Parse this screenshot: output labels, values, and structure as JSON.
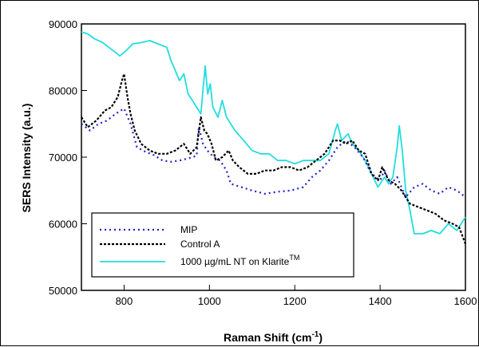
{
  "chart_data": {
    "type": "line",
    "xlabel": "Raman Shift (cm",
    "xlabel_sup": "-1",
    "xlabel_close": ")",
    "ylabel": "SERS Intensity (a.u.)",
    "xlim": [
      700,
      1600
    ],
    "ylim": [
      50000,
      90000
    ],
    "x_ticks": [
      800,
      1000,
      1200,
      1400,
      1600
    ],
    "y_ticks": [
      50000,
      60000,
      70000,
      80000,
      90000
    ],
    "legend_position": "bottom-left",
    "series": [
      {
        "name": "MIP",
        "color": "#2222cc",
        "dash": "dotted",
        "points": [
          [
            700,
            75000
          ],
          [
            720,
            74000
          ],
          [
            740,
            75000
          ],
          [
            760,
            75500
          ],
          [
            780,
            76500
          ],
          [
            800,
            77300
          ],
          [
            815,
            75000
          ],
          [
            830,
            71500
          ],
          [
            850,
            70800
          ],
          [
            870,
            70300
          ],
          [
            890,
            69500
          ],
          [
            910,
            69300
          ],
          [
            930,
            69500
          ],
          [
            950,
            69800
          ],
          [
            970,
            70200
          ],
          [
            975,
            74500
          ],
          [
            985,
            72000
          ],
          [
            995,
            71000
          ],
          [
            1010,
            70000
          ],
          [
            1025,
            69500
          ],
          [
            1040,
            68000
          ],
          [
            1050,
            66000
          ],
          [
            1075,
            65500
          ],
          [
            1100,
            65000
          ],
          [
            1130,
            64500
          ],
          [
            1160,
            64800
          ],
          [
            1190,
            65000
          ],
          [
            1220,
            65500
          ],
          [
            1240,
            67000
          ],
          [
            1260,
            68000
          ],
          [
            1280,
            69500
          ],
          [
            1300,
            71500
          ],
          [
            1320,
            72500
          ],
          [
            1340,
            71500
          ],
          [
            1360,
            70000
          ],
          [
            1380,
            67500
          ],
          [
            1400,
            66500
          ],
          [
            1410,
            68000
          ],
          [
            1425,
            66000
          ],
          [
            1440,
            67000
          ],
          [
            1460,
            64000
          ],
          [
            1480,
            65500
          ],
          [
            1500,
            66000
          ],
          [
            1520,
            65000
          ],
          [
            1540,
            64500
          ],
          [
            1560,
            65500
          ],
          [
            1580,
            65000
          ],
          [
            1600,
            64000
          ]
        ]
      },
      {
        "name": "Control A",
        "color": "#000000",
        "dash": "dashed",
        "points": [
          [
            700,
            76000
          ],
          [
            715,
            74500
          ],
          [
            735,
            75500
          ],
          [
            755,
            77000
          ],
          [
            770,
            77500
          ],
          [
            785,
            79000
          ],
          [
            795,
            81500
          ],
          [
            800,
            82500
          ],
          [
            808,
            79000
          ],
          [
            815,
            76500
          ],
          [
            825,
            74000
          ],
          [
            840,
            72000
          ],
          [
            860,
            71000
          ],
          [
            880,
            70500
          ],
          [
            900,
            70500
          ],
          [
            920,
            71000
          ],
          [
            940,
            72000
          ],
          [
            955,
            70500
          ],
          [
            970,
            71500
          ],
          [
            980,
            76000
          ],
          [
            988,
            74000
          ],
          [
            995,
            73500
          ],
          [
            1005,
            72000
          ],
          [
            1015,
            69500
          ],
          [
            1030,
            70000
          ],
          [
            1045,
            71000
          ],
          [
            1055,
            69500
          ],
          [
            1070,
            68500
          ],
          [
            1090,
            67500
          ],
          [
            1110,
            67500
          ],
          [
            1130,
            68000
          ],
          [
            1150,
            68000
          ],
          [
            1170,
            68500
          ],
          [
            1190,
            68500
          ],
          [
            1210,
            68000
          ],
          [
            1230,
            68500
          ],
          [
            1250,
            69500
          ],
          [
            1270,
            70500
          ],
          [
            1290,
            72500
          ],
          [
            1305,
            72500
          ],
          [
            1320,
            72000
          ],
          [
            1335,
            72500
          ],
          [
            1350,
            71000
          ],
          [
            1365,
            70500
          ],
          [
            1380,
            67500
          ],
          [
            1395,
            66500
          ],
          [
            1405,
            68500
          ],
          [
            1420,
            66500
          ],
          [
            1435,
            66000
          ],
          [
            1450,
            65000
          ],
          [
            1470,
            63000
          ],
          [
            1490,
            62500
          ],
          [
            1510,
            62000
          ],
          [
            1530,
            61500
          ],
          [
            1550,
            60500
          ],
          [
            1570,
            60000
          ],
          [
            1585,
            59500
          ],
          [
            1600,
            57000
          ]
        ]
      },
      {
        "name": "1000 µg/mL NT on Klarite",
        "name_sup": "TM",
        "color": "#22dddd",
        "dash": "solid",
        "points": [
          [
            700,
            88800
          ],
          [
            715,
            88500
          ],
          [
            730,
            87800
          ],
          [
            750,
            87200
          ],
          [
            770,
            86200
          ],
          [
            790,
            85200
          ],
          [
            805,
            86000
          ],
          [
            820,
            87000
          ],
          [
            840,
            87200
          ],
          [
            860,
            87500
          ],
          [
            880,
            87000
          ],
          [
            900,
            86500
          ],
          [
            910,
            84500
          ],
          [
            930,
            81500
          ],
          [
            940,
            82500
          ],
          [
            950,
            79500
          ],
          [
            960,
            78500
          ],
          [
            970,
            77500
          ],
          [
            980,
            76500
          ],
          [
            990,
            83700
          ],
          [
            996,
            79500
          ],
          [
            1002,
            81000
          ],
          [
            1008,
            77500
          ],
          [
            1020,
            76000
          ],
          [
            1030,
            78500
          ],
          [
            1040,
            76000
          ],
          [
            1060,
            74000
          ],
          [
            1080,
            72500
          ],
          [
            1100,
            71000
          ],
          [
            1120,
            70500
          ],
          [
            1140,
            70500
          ],
          [
            1160,
            69500
          ],
          [
            1180,
            69500
          ],
          [
            1200,
            69000
          ],
          [
            1220,
            69500
          ],
          [
            1240,
            69500
          ],
          [
            1260,
            69500
          ],
          [
            1280,
            70500
          ],
          [
            1295,
            74000
          ],
          [
            1300,
            75000
          ],
          [
            1310,
            72500
          ],
          [
            1325,
            73500
          ],
          [
            1335,
            72000
          ],
          [
            1350,
            71000
          ],
          [
            1365,
            69500
          ],
          [
            1380,
            67500
          ],
          [
            1395,
            65500
          ],
          [
            1410,
            67000
          ],
          [
            1420,
            66000
          ],
          [
            1430,
            67000
          ],
          [
            1440,
            71500
          ],
          [
            1445,
            74700
          ],
          [
            1452,
            71000
          ],
          [
            1460,
            65000
          ],
          [
            1470,
            62000
          ],
          [
            1480,
            58500
          ],
          [
            1500,
            58500
          ],
          [
            1520,
            59000
          ],
          [
            1540,
            58500
          ],
          [
            1560,
            60000
          ],
          [
            1580,
            59000
          ],
          [
            1600,
            61000
          ]
        ]
      }
    ]
  }
}
